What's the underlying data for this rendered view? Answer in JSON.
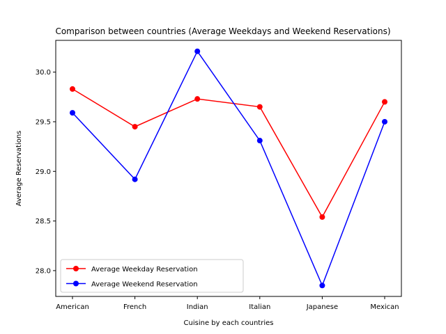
{
  "chart_data": {
    "type": "line",
    "title": "Comparison between countries (Average Weekdays and Weekend Reservations)",
    "xlabel": "Cuisine by each countries",
    "ylabel": "Average Reservations",
    "categories": [
      "American",
      "French",
      "Indian",
      "Italian",
      "Japanese",
      "Mexican"
    ],
    "ylim": [
      27.74,
      30.32
    ],
    "yticks": [
      28.0,
      28.5,
      29.0,
      29.5,
      30.0
    ],
    "ytick_labels": [
      "28.0",
      "28.5",
      "29.0",
      "29.5",
      "30.0"
    ],
    "grid": false,
    "legend_position": "lower-left",
    "series": [
      {
        "name": "Average Weekday Reservation",
        "color": "#ff0000",
        "marker": "circle",
        "values": [
          29.83,
          29.45,
          29.73,
          29.65,
          28.54,
          29.7
        ]
      },
      {
        "name": "Average Weekend Reservation",
        "color": "#0000ff",
        "marker": "circle",
        "values": [
          29.59,
          28.92,
          30.21,
          29.31,
          27.85,
          29.5
        ]
      }
    ]
  }
}
